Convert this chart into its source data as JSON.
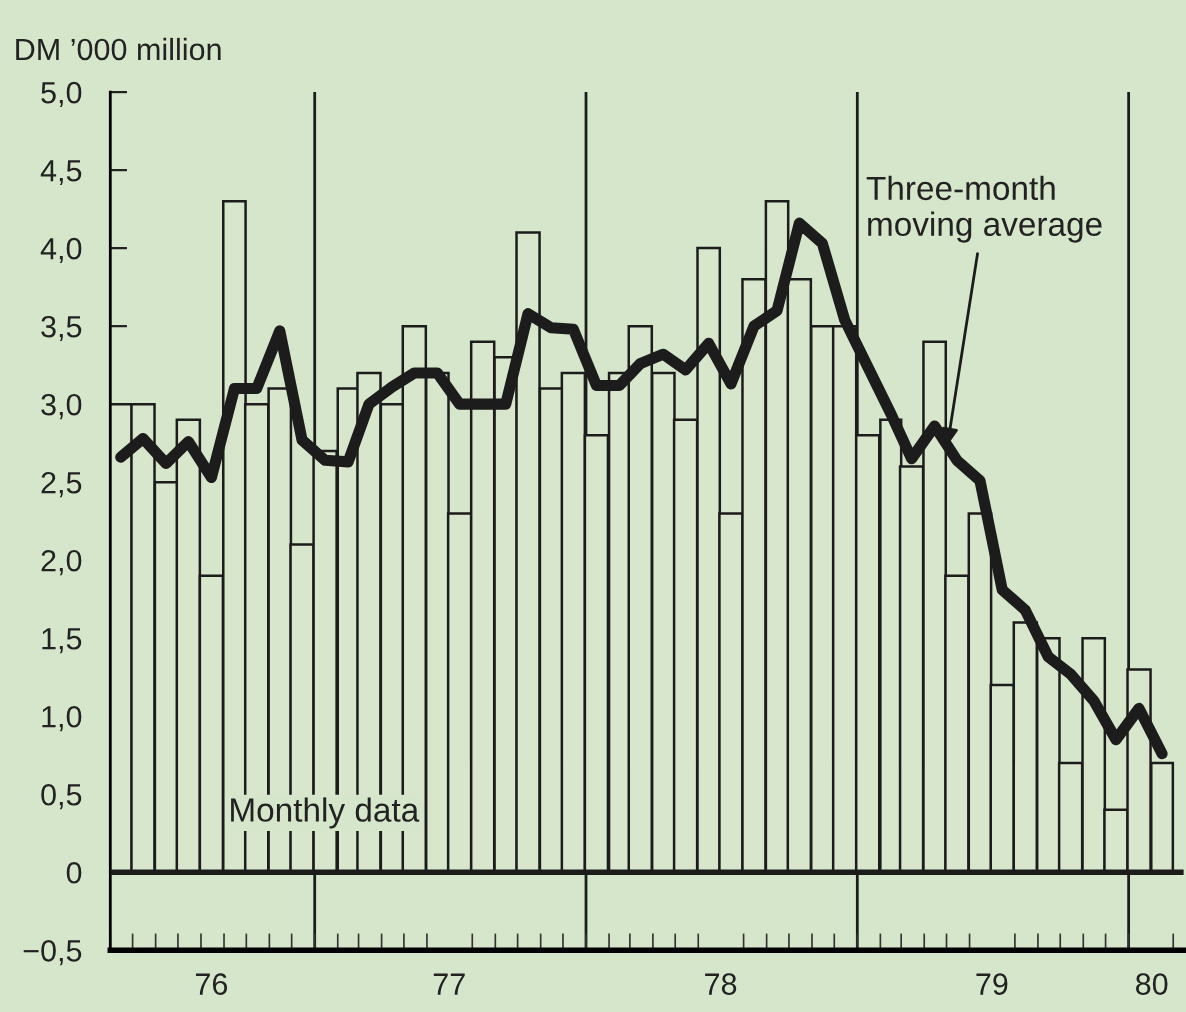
{
  "chart_data": {
    "type": "bar",
    "ylabel": "DM ’000 million",
    "x": [
      "1976-04-15",
      "1976-05-15",
      "1976-06-15",
      "1976-07-15",
      "1976-08-15",
      "1976-09-15",
      "1976-10-15",
      "1976-11-15",
      "1976-12-15",
      "1977-01-15",
      "1977-02-15",
      "1977-03-15",
      "1977-04-15",
      "1977-05-15",
      "1977-06-15",
      "1977-07-15",
      "1977-08-15",
      "1977-09-15",
      "1977-10-15",
      "1977-11-15",
      "1977-12-15",
      "1978-01-15",
      "1978-02-15",
      "1978-03-15",
      "1978-04-15",
      "1978-05-15",
      "1978-06-15",
      "1978-07-15",
      "1978-08-15",
      "1978-09-15",
      "1978-10-15",
      "1978-11-15",
      "1978-12-15",
      "1979-01-15",
      "1979-02-15",
      "1979-03-15",
      "1979-04-15",
      "1979-05-15",
      "1979-06-15",
      "1979-07-15",
      "1979-08-15",
      "1979-09-15",
      "1979-10-15",
      "1979-11-15",
      "1979-12-15",
      "1980-01-15",
      "1980-02-15"
    ],
    "series": [
      {
        "color": "#d8e7cc",
        "values": [
          3.0,
          3.0,
          2.5,
          2.9,
          1.9,
          4.3,
          3.0,
          3.1,
          2.1,
          2.7,
          3.1,
          3.2,
          3.0,
          3.5,
          3.2,
          2.3,
          3.4,
          3.3,
          4.1,
          3.1,
          3.2,
          2.8,
          3.2,
          3.5,
          3.2,
          2.9,
          4.0,
          2.3,
          3.8,
          4.3,
          3.8,
          3.5,
          3.5,
          2.8,
          2.9,
          2.6,
          3.4,
          1.9,
          2.3,
          1.2,
          1.6,
          1.5,
          0.7,
          1.5,
          0.4,
          1.3,
          0.7
        ]
      },
      {
        "type": "line",
        "color": "#1c1c1c",
        "values": [
          2.66,
          2.78,
          2.62,
          2.76,
          2.53,
          3.1,
          3.1,
          3.47,
          2.77,
          2.64,
          2.63,
          3.0,
          3.11,
          3.2,
          3.2,
          3.0,
          3.0,
          3.0,
          3.58,
          3.49,
          3.48,
          3.12,
          3.12,
          3.26,
          3.32,
          3.22,
          3.39,
          3.13,
          3.5,
          3.6,
          4.16,
          4.03,
          3.54,
          3.24,
          2.94,
          2.65,
          2.86,
          2.64,
          2.51,
          1.81,
          1.68,
          1.38,
          1.27,
          1.1,
          0.85,
          1.05,
          0.76
        ]
      }
    ],
    "xlim": [
      "1976-04-01",
      "1980-03-15"
    ],
    "xticks": [
      {
        "value": "1976-08-15",
        "label": "76"
      },
      {
        "value": "1977-07-01",
        "label": "77"
      },
      {
        "value": "1978-07-01",
        "label": "78"
      },
      {
        "value": "1979-07-01",
        "label": "79"
      },
      {
        "value": "1980-02-01",
        "label": "80"
      }
    ],
    "ylim": [
      -0.5,
      5.0
    ],
    "yticks": [
      {
        "value": -0.5,
        "label": "−0,5"
      },
      0,
      {
        "value": 0.5,
        "label": "0,5"
      },
      {
        "value": 1,
        "label": "1,0"
      },
      {
        "value": 1.5,
        "label": "1,5"
      },
      {
        "value": 2,
        "label": "2,0"
      },
      {
        "value": 2.5,
        "label": "2,5"
      },
      {
        "value": 3,
        "label": "3,0"
      },
      {
        "value": 3.5,
        "label": "3,5"
      },
      {
        "value": 4,
        "label": "4,0"
      },
      {
        "value": 4.5,
        "label": "4,5"
      },
      {
        "value": 5,
        "label": "5,0"
      }
    ],
    "ref_lines": [
      {
        "axis": "y",
        "value": 0,
        "color": "#1c1c1c"
      },
      {
        "axis": "x",
        "value": "1977-01-01",
        "color": "#1c1c1c"
      },
      {
        "axis": "x",
        "value": "1978-01-01",
        "color": "#1c1c1c"
      },
      {
        "axis": "x",
        "value": "1979-01-01",
        "color": "#1c1c1c"
      },
      {
        "axis": "x",
        "value": "1980-01-01",
        "color": "#1c1c1c"
      }
    ],
    "annotations": [
      "Monthly data",
      {
        "text": "Three-month\nmoving average",
        "x": "1979-05-01",
        "y": 2.7
      }
    ],
    "grid": false,
    "legend": false
  }
}
